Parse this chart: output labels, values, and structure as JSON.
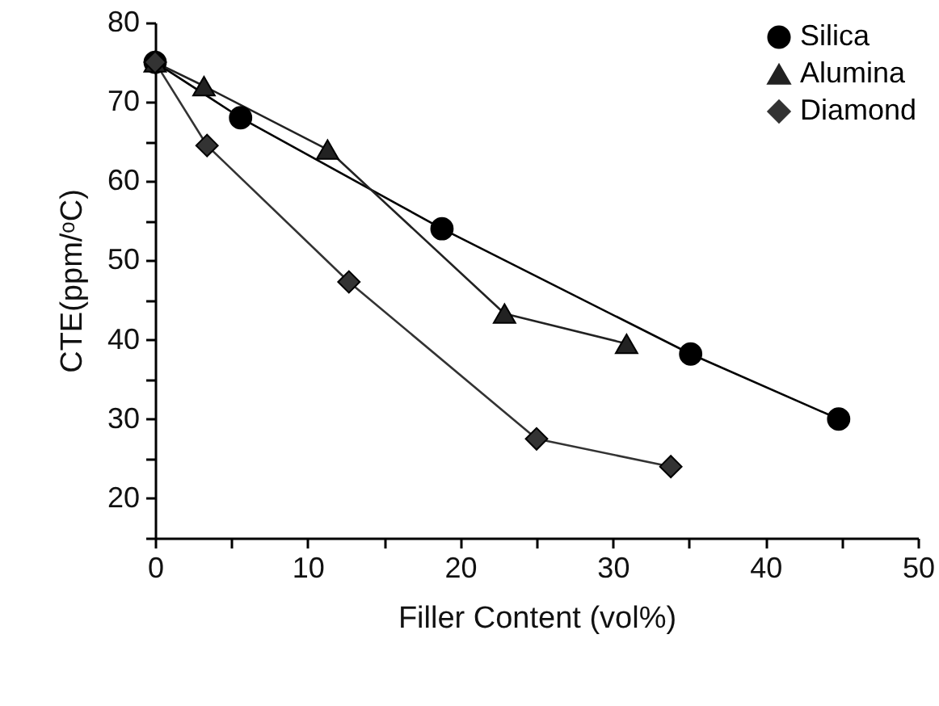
{
  "chart_data": {
    "type": "line",
    "xlabel": "Filler Content (vol%)",
    "ylabel": "CTE(ppm/ᵒC)",
    "xlim": [
      0,
      50
    ],
    "ylim": [
      15,
      80
    ],
    "xticks": [
      0,
      {
        "value": 5,
        "label": null
      },
      10,
      {
        "value": 15,
        "label": null
      },
      20,
      {
        "value": 25,
        "label": null
      },
      30,
      {
        "value": 35,
        "label": null
      },
      40,
      {
        "value": 45,
        "label": null
      },
      50
    ],
    "yticks": [
      {
        "value": 15,
        "label": null
      },
      20,
      {
        "value": 25,
        "label": null
      },
      30,
      {
        "value": 35,
        "label": null
      },
      40,
      {
        "value": 45,
        "label": null
      },
      50,
      {
        "value": 55,
        "label": null
      },
      60,
      {
        "value": 65,
        "label": null
      },
      70,
      {
        "value": 75,
        "label": null
      },
      80
    ],
    "grid": false,
    "legend": "top right",
    "line_style": "solid",
    "series": [
      {
        "name": "Silica",
        "color": "#000000",
        "marker": "circle",
        "x": [
          0,
          5.6,
          18.8,
          35.1,
          44.8
        ],
        "values": [
          75,
          68,
          54,
          38.2,
          30
        ]
      },
      {
        "name": "Alumina",
        "color": "#222222",
        "marker": "triangle",
        "x": [
          0,
          3.2,
          11.3,
          22.9,
          30.9
        ],
        "values": [
          75,
          72,
          64,
          43.3,
          39.5
        ]
      },
      {
        "name": "Diamond",
        "color": "#333333",
        "marker": "diamond",
        "x": [
          0,
          3.4,
          12.7,
          25,
          33.8
        ],
        "values": [
          75,
          64.5,
          47.3,
          27.5,
          24
        ]
      }
    ]
  }
}
